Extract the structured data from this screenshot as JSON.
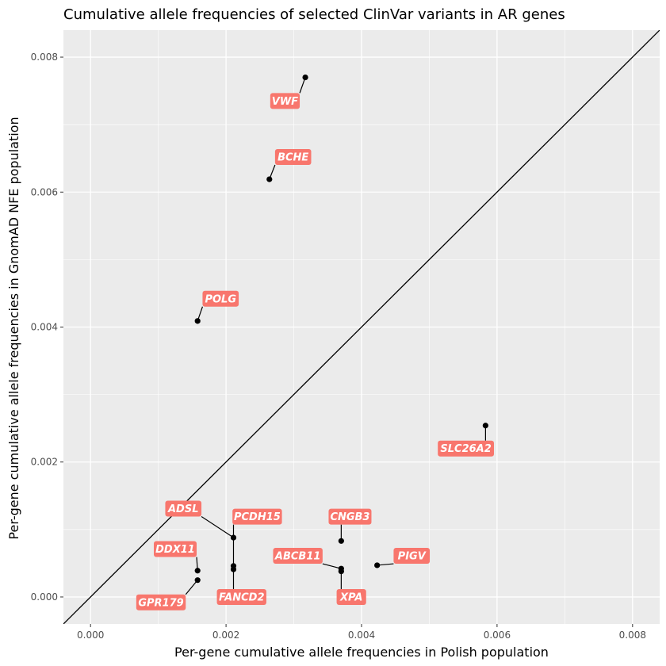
{
  "chart_data": {
    "type": "scatter",
    "title": "Cumulative allele frequencies of selected ClinVar variants in AR genes",
    "xlabel": "Per-gene cumulative allele frequencies in Polish population",
    "ylabel": "Per-gene cumulative allele frequencies in GnomAD NFE population",
    "xlim": [
      -0.0004,
      0.0084
    ],
    "ylim": [
      -0.0004,
      0.0084
    ],
    "x_ticks": [
      "0.000",
      "0.002",
      "0.004",
      "0.006",
      "0.008"
    ],
    "y_ticks": [
      "0.000",
      "0.002",
      "0.004",
      "0.006",
      "0.008"
    ],
    "x_tick_values": [
      0,
      0.002,
      0.004,
      0.006,
      0.008
    ],
    "y_tick_values": [
      0,
      0.002,
      0.004,
      0.006,
      0.008
    ],
    "grid": true,
    "reference_line": "y = x",
    "label_color": "#f8766d",
    "panel_color": "#ebebeb",
    "points": [
      {
        "gene": "VWF",
        "x": 0.00317,
        "y": 0.0077
      },
      {
        "gene": "BCHE",
        "x": 0.00264,
        "y": 0.00619
      },
      {
        "gene": "POLG",
        "x": 0.00158,
        "y": 0.00409
      },
      {
        "gene": "SLC26A2",
        "x": 0.00583,
        "y": 0.00254
      },
      {
        "gene": "ADSL",
        "x": 0.00211,
        "y": 0.00088
      },
      {
        "gene": "PCDH15",
        "x": 0.00211,
        "y": 0.00046
      },
      {
        "gene": "FANCD2",
        "x": 0.00211,
        "y": 0.00041
      },
      {
        "gene": "CNGB3",
        "x": 0.0037,
        "y": 0.00083
      },
      {
        "gene": "ABCB11",
        "x": 0.0037,
        "y": 0.00042
      },
      {
        "gene": "XPA",
        "x": 0.0037,
        "y": 0.00038
      },
      {
        "gene": "PIGV",
        "x": 0.00423,
        "y": 0.00047
      },
      {
        "gene": "DDX11",
        "x": 0.00158,
        "y": 0.00039
      },
      {
        "gene": "GPR179",
        "x": 0.00158,
        "y": 0.00025
      }
    ],
    "label_positions": [
      {
        "gene": "VWF",
        "x": 0.00287,
        "y": 0.00735
      },
      {
        "gene": "BCHE",
        "x": 0.00299,
        "y": 0.00652
      },
      {
        "gene": "POLG",
        "x": 0.00192,
        "y": 0.00442
      },
      {
        "gene": "SLC26A2",
        "x": 0.00554,
        "y": 0.0022
      },
      {
        "gene": "ADSL",
        "x": 0.00137,
        "y": 0.00131
      },
      {
        "gene": "PCDH15",
        "x": 0.00246,
        "y": 0.00119
      },
      {
        "gene": "FANCD2",
        "x": 0.00223,
        "y": 0.0
      },
      {
        "gene": "CNGB3",
        "x": 0.00383,
        "y": 0.00119
      },
      {
        "gene": "ABCB11",
        "x": 0.00306,
        "y": 0.00061
      },
      {
        "gene": "XPA",
        "x": 0.00385,
        "y": 0.0
      },
      {
        "gene": "PIGV",
        "x": 0.00474,
        "y": 0.00061
      },
      {
        "gene": "DDX11",
        "x": 0.00125,
        "y": 0.00071
      },
      {
        "gene": "GPR179",
        "x": 0.00104,
        "y": -8e-05
      }
    ]
  }
}
